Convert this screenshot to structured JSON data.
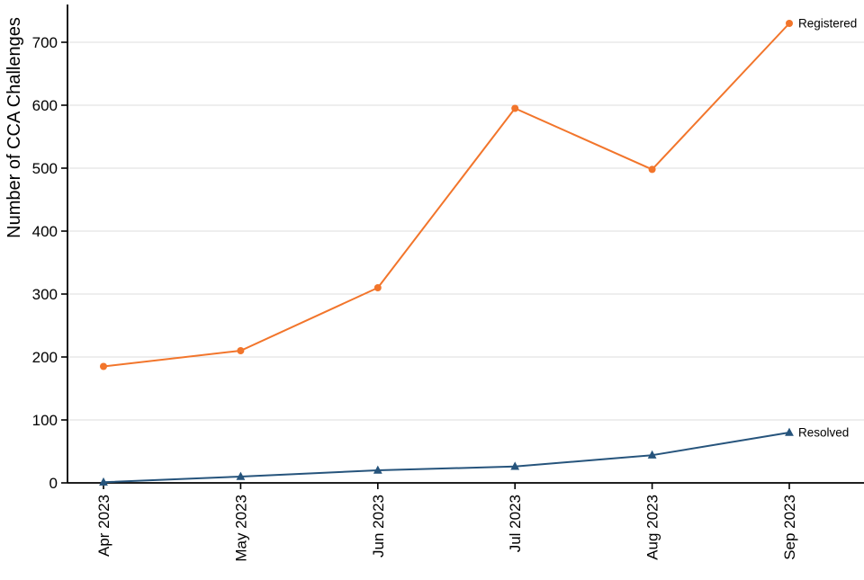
{
  "chart_data": {
    "type": "line",
    "title": "",
    "xlabel": "",
    "ylabel": "Number of CCA Challenges",
    "x": [
      "Apr 2023",
      "May 2023",
      "Jun 2023",
      "Jul 2023",
      "Aug 2023",
      "Sep 2023"
    ],
    "series": [
      {
        "name": "Registered",
        "marker": "circle",
        "color": "#F2752B",
        "values": [
          185,
          210,
          310,
          595,
          498,
          730
        ]
      },
      {
        "name": "Resolved",
        "marker": "triangle",
        "color": "#26547C",
        "values": [
          1,
          10,
          20,
          26,
          44,
          80
        ]
      }
    ],
    "yticks": [
      0,
      100,
      200,
      300,
      400,
      500,
      600,
      700
    ],
    "ylim": [
      0,
      760
    ],
    "grid": true,
    "grid_color": "#DCDCDC",
    "axis_color": "#000000",
    "background": "#FFFFFF",
    "legend_position": "end-of-line-labels",
    "x_tick_label_rotation_deg": 90
  }
}
